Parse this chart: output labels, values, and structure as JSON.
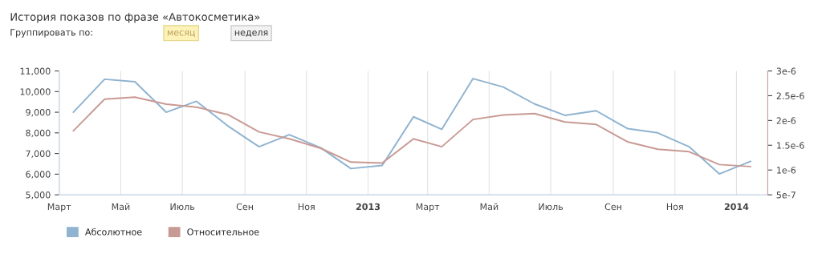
{
  "chart_data": {
    "type": "line",
    "title": "История показов по фразе «Автокосметика»",
    "annotations": [
      "Группировать по:",
      "месяц",
      "неделя"
    ],
    "x": [
      "2012-03-15",
      "2012-04-15",
      "2012-05-15",
      "2012-06-15",
      "2012-07-15",
      "2012-08-15",
      "2012-09-15",
      "2012-10-15",
      "2012-11-15",
      "2012-12-15",
      "2013-01-15",
      "2013-02-15",
      "2013-03-15",
      "2013-04-15",
      "2013-05-15",
      "2013-06-15",
      "2013-07-15",
      "2013-08-15",
      "2013-09-15",
      "2013-10-15",
      "2013-11-15",
      "2013-12-15",
      "2014-01-15"
    ],
    "series": [
      {
        "name": "Абсолютное",
        "color": "#8fb3d0",
        "values": [
          9000,
          10600,
          10480,
          9000,
          9530,
          8340,
          7330,
          7910,
          7280,
          6270,
          6420,
          8780,
          8170,
          10630,
          10220,
          9400,
          8850,
          9070,
          8210,
          8000,
          7330,
          6010,
          6620
        ]
      },
      {
        "name": "Относительное",
        "color": "#c89a94",
        "axis": "y2",
        "values": [
          1.79e-06,
          2.43e-06,
          2.47e-06,
          2.33e-06,
          2.27e-06,
          2.12e-06,
          1.77e-06,
          1.63e-06,
          1.44e-06,
          1.16e-06,
          1.14e-06,
          1.63e-06,
          1.47e-06,
          2.02e-06,
          2.11e-06,
          2.14e-06,
          1.97e-06,
          1.92e-06,
          1.57e-06,
          1.42e-06,
          1.37e-06,
          1.11e-06,
          1.07e-06
        ]
      }
    ],
    "xlim": [
      "2012-03-01",
      "2014-02-01"
    ],
    "xticks": [
      {
        "value": "2012-03-01",
        "label": "Март"
      },
      {
        "value": "2012-05-01",
        "label": "Май"
      },
      {
        "value": "2012-07-01",
        "label": "Июль"
      },
      {
        "value": "2012-09-01",
        "label": "Сен"
      },
      {
        "value": "2012-11-01",
        "label": "Ноя"
      },
      {
        "value": "2013-01-01",
        "label": "2013"
      },
      {
        "value": "2013-03-01",
        "label": "Март"
      },
      {
        "value": "2013-05-01",
        "label": "Май"
      },
      {
        "value": "2013-07-01",
        "label": "Июль"
      },
      {
        "value": "2013-09-01",
        "label": "Сен"
      },
      {
        "value": "2013-11-01",
        "label": "Ноя"
      },
      {
        "value": "2014-01-01",
        "label": "2014"
      }
    ],
    "ylim": [
      5000,
      11000
    ],
    "yticks": [
      {
        "value": 5000,
        "label": "5,000"
      },
      {
        "value": 6000,
        "label": "6,000"
      },
      {
        "value": 7000,
        "label": "7,000"
      },
      {
        "value": 8000,
        "label": "8,000"
      },
      {
        "value": 9000,
        "label": "9,000"
      },
      {
        "value": 10000,
        "label": "10,000"
      },
      {
        "value": 11000,
        "label": "11,000"
      }
    ],
    "y2lim": [
      5e-07,
      3e-06
    ],
    "y2ticks": [
      {
        "value": 5e-07,
        "label": "5e-7"
      },
      {
        "value": 1e-06,
        "label": "1e-6"
      },
      {
        "value": 1.5e-06,
        "label": "1.5e-6"
      },
      {
        "value": 2e-06,
        "label": "2e-6"
      },
      {
        "value": 2.5e-06,
        "label": "2.5e-6"
      },
      {
        "value": 3e-06,
        "label": "3e-6"
      }
    ],
    "grid": "x",
    "legend": "bottom left",
    "marker": "none",
    "line_style": "solid"
  }
}
